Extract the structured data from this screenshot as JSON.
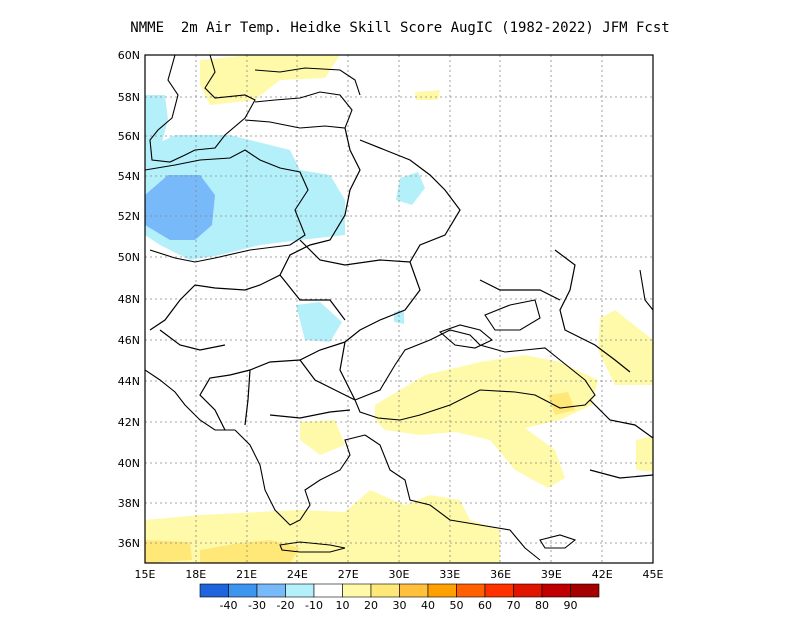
{
  "title": "NMME  2m Air Temp. Heidke Skill Score AugIC (1982-2022) JFM Fcst",
  "lat_labels": [
    "60N",
    "58N",
    "56N",
    "54N",
    "52N",
    "50N",
    "48N",
    "46N",
    "44N",
    "42N",
    "40N",
    "38N",
    "36N"
  ],
  "lon_labels": [
    "15E",
    "18E",
    "21E",
    "24E",
    "27E",
    "30E",
    "33E",
    "36E",
    "39E",
    "42E",
    "45E"
  ],
  "colorbar": {
    "colors": [
      "#1e64dc",
      "#3c96f0",
      "#78b9fa",
      "#b4f0fa",
      "#ffffff",
      "#fffaaa",
      "#ffe878",
      "#ffc03c",
      "#ffa000",
      "#ff6000",
      "#ff3200",
      "#e11400",
      "#c00000",
      "#a50000"
    ],
    "labels": [
      "-40",
      "-30",
      "-20",
      "-10",
      "10",
      "20",
      "30",
      "40",
      "50",
      "60",
      "70",
      "80",
      "90"
    ]
  }
}
